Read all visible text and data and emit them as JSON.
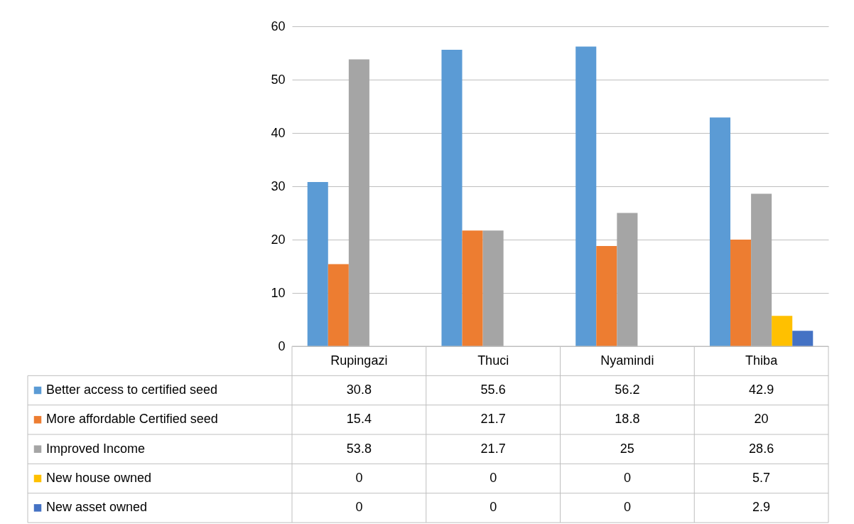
{
  "chart_data": {
    "type": "bar",
    "categories": [
      "Rupingazi",
      "Thuci",
      "Nyamindi",
      "Thiba"
    ],
    "series": [
      {
        "name": "Better access to certified seed",
        "color": "#5b9bd5",
        "values": [
          30.8,
          55.6,
          56.2,
          42.9
        ],
        "value_labels": [
          "30.8",
          "55.6",
          "56.2",
          "42.9"
        ]
      },
      {
        "name": "More affordable Certified seed",
        "color": "#ed7d31",
        "values": [
          15.4,
          21.7,
          18.8,
          20
        ],
        "value_labels": [
          "15.4",
          "21.7",
          "18.8",
          "20"
        ]
      },
      {
        "name": "Improved Income",
        "color": "#a5a5a5",
        "values": [
          53.8,
          21.7,
          25,
          28.6
        ],
        "value_labels": [
          "53.8",
          "21.7",
          "25",
          "28.6"
        ]
      },
      {
        "name": "New house owned",
        "color": "#ffc000",
        "values": [
          0,
          0,
          0,
          5.7
        ],
        "value_labels": [
          "0",
          "0",
          "0",
          "5.7"
        ]
      },
      {
        "name": "New asset owned",
        "color": "#4472c4",
        "values": [
          0,
          0,
          0,
          2.9
        ],
        "value_labels": [
          "0",
          "0",
          "0",
          "2.9"
        ]
      }
    ],
    "ylim": [
      0,
      60
    ],
    "yticks": [
      0,
      10,
      20,
      30,
      40,
      50,
      60
    ],
    "grid": "y",
    "legend": "bottom"
  }
}
